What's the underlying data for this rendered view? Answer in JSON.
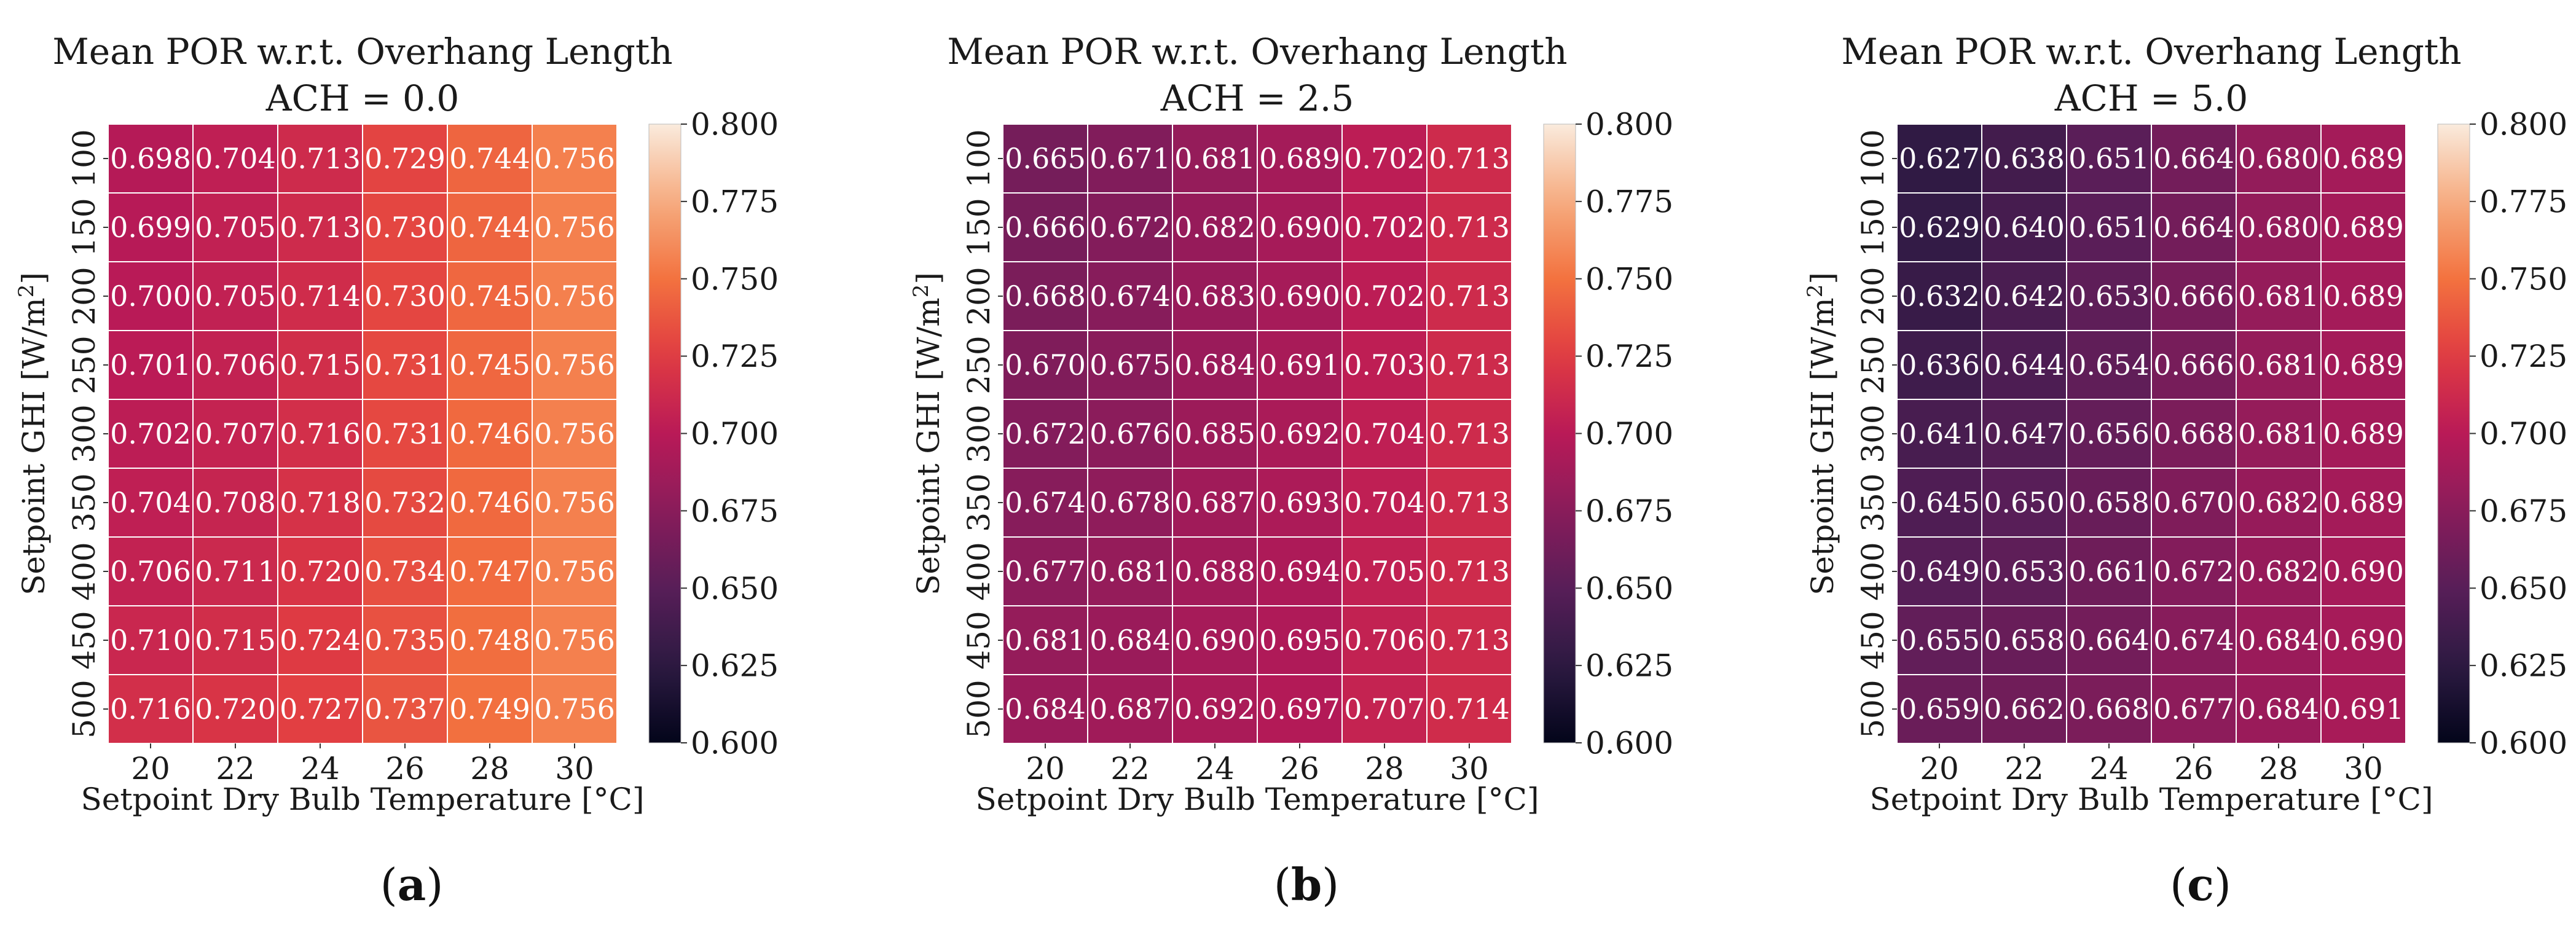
{
  "colors": {
    "cmap": [
      "#03051a",
      "#2c1a42",
      "#581e58",
      "#891c5b",
      "#b91a57",
      "#e03b42",
      "#f3723f",
      "#f6ab7f",
      "#faebdd"
    ],
    "cell_border": "#ffffff",
    "text_on_dark": "#ffffff"
  },
  "chart_data": [
    {
      "type": "heatmap",
      "title": "Mean POR w.r.t. Overhang Length",
      "subtitle": "ACH = 0.0",
      "xlabel": "Setpoint Dry Bulb Temperature [°C]",
      "ylabel_prefix": "Setpoint GHI [W/m",
      "ylabel_sup": "2",
      "ylabel_suffix": "]",
      "x": [
        "20",
        "22",
        "24",
        "26",
        "28",
        "30"
      ],
      "y": [
        "100",
        "150",
        "200",
        "250",
        "300",
        "350",
        "400",
        "450",
        "500"
      ],
      "values": [
        [
          0.698,
          0.704,
          0.713,
          0.729,
          0.744,
          0.756
        ],
        [
          0.699,
          0.705,
          0.713,
          0.73,
          0.744,
          0.756
        ],
        [
          0.7,
          0.705,
          0.714,
          0.73,
          0.745,
          0.756
        ],
        [
          0.701,
          0.706,
          0.715,
          0.731,
          0.745,
          0.756
        ],
        [
          0.702,
          0.707,
          0.716,
          0.731,
          0.746,
          0.756
        ],
        [
          0.704,
          0.708,
          0.718,
          0.732,
          0.746,
          0.756
        ],
        [
          0.706,
          0.711,
          0.72,
          0.734,
          0.747,
          0.756
        ],
        [
          0.71,
          0.715,
          0.724,
          0.735,
          0.748,
          0.756
        ],
        [
          0.716,
          0.72,
          0.727,
          0.737,
          0.749,
          0.756
        ]
      ],
      "value_labels": [
        [
          "0.698",
          "0.704",
          "0.713",
          "0.729",
          "0.744",
          "0.756"
        ],
        [
          "0.699",
          "0.705",
          "0.713",
          "0.730",
          "0.744",
          "0.756"
        ],
        [
          "0.700",
          "0.705",
          "0.714",
          "0.730",
          "0.745",
          "0.756"
        ],
        [
          "0.701",
          "0.706",
          "0.715",
          "0.731",
          "0.745",
          "0.756"
        ],
        [
          "0.702",
          "0.707",
          "0.716",
          "0.731",
          "0.746",
          "0.756"
        ],
        [
          "0.704",
          "0.708",
          "0.718",
          "0.732",
          "0.746",
          "0.756"
        ],
        [
          "0.706",
          "0.711",
          "0.720",
          "0.734",
          "0.747",
          "0.756"
        ],
        [
          "0.710",
          "0.715",
          "0.724",
          "0.735",
          "0.748",
          "0.756"
        ],
        [
          "0.716",
          "0.720",
          "0.727",
          "0.737",
          "0.749",
          "0.756"
        ]
      ],
      "colorbar": {
        "range": [
          0.6,
          0.8
        ],
        "ticks": [
          0.6,
          0.625,
          0.65,
          0.675,
          0.7,
          0.725,
          0.75,
          0.775,
          0.8
        ],
        "tick_labels": [
          "0.600",
          "0.625",
          "0.650",
          "0.675",
          "0.700",
          "0.725",
          "0.750",
          "0.775",
          "0.800"
        ]
      },
      "caption": "(a)"
    },
    {
      "type": "heatmap",
      "title": "Mean POR w.r.t. Overhang Length",
      "subtitle": "ACH = 2.5",
      "xlabel": "Setpoint Dry Bulb Temperature [°C]",
      "ylabel_prefix": "Setpoint GHI [W/m",
      "ylabel_sup": "2",
      "ylabel_suffix": "]",
      "x": [
        "20",
        "22",
        "24",
        "26",
        "28",
        "30"
      ],
      "y": [
        "100",
        "150",
        "200",
        "250",
        "300",
        "350",
        "400",
        "450",
        "500"
      ],
      "values": [
        [
          0.665,
          0.671,
          0.681,
          0.689,
          0.702,
          0.713
        ],
        [
          0.666,
          0.672,
          0.682,
          0.69,
          0.702,
          0.713
        ],
        [
          0.668,
          0.674,
          0.683,
          0.69,
          0.702,
          0.713
        ],
        [
          0.67,
          0.675,
          0.684,
          0.691,
          0.703,
          0.713
        ],
        [
          0.672,
          0.676,
          0.685,
          0.692,
          0.704,
          0.713
        ],
        [
          0.674,
          0.678,
          0.687,
          0.693,
          0.704,
          0.713
        ],
        [
          0.677,
          0.681,
          0.688,
          0.694,
          0.705,
          0.713
        ],
        [
          0.681,
          0.684,
          0.69,
          0.695,
          0.706,
          0.713
        ],
        [
          0.684,
          0.687,
          0.692,
          0.697,
          0.707,
          0.714
        ]
      ],
      "value_labels": [
        [
          "0.665",
          "0.671",
          "0.681",
          "0.689",
          "0.702",
          "0.713"
        ],
        [
          "0.666",
          "0.672",
          "0.682",
          "0.690",
          "0.702",
          "0.713"
        ],
        [
          "0.668",
          "0.674",
          "0.683",
          "0.690",
          "0.702",
          "0.713"
        ],
        [
          "0.670",
          "0.675",
          "0.684",
          "0.691",
          "0.703",
          "0.713"
        ],
        [
          "0.672",
          "0.676",
          "0.685",
          "0.692",
          "0.704",
          "0.713"
        ],
        [
          "0.674",
          "0.678",
          "0.687",
          "0.693",
          "0.704",
          "0.713"
        ],
        [
          "0.677",
          "0.681",
          "0.688",
          "0.694",
          "0.705",
          "0.713"
        ],
        [
          "0.681",
          "0.684",
          "0.690",
          "0.695",
          "0.706",
          "0.713"
        ],
        [
          "0.684",
          "0.687",
          "0.692",
          "0.697",
          "0.707",
          "0.714"
        ]
      ],
      "colorbar": {
        "range": [
          0.6,
          0.8
        ],
        "ticks": [
          0.6,
          0.625,
          0.65,
          0.675,
          0.7,
          0.725,
          0.75,
          0.775,
          0.8
        ],
        "tick_labels": [
          "0.600",
          "0.625",
          "0.650",
          "0.675",
          "0.700",
          "0.725",
          "0.750",
          "0.775",
          "0.800"
        ]
      },
      "caption": "(b)"
    },
    {
      "type": "heatmap",
      "title": "Mean POR w.r.t. Overhang Length",
      "subtitle": "ACH = 5.0",
      "xlabel": "Setpoint Dry Bulb Temperature [°C]",
      "ylabel_prefix": "Setpoint GHI [W/m",
      "ylabel_sup": "2",
      "ylabel_suffix": "]",
      "x": [
        "20",
        "22",
        "24",
        "26",
        "28",
        "30"
      ],
      "y": [
        "100",
        "150",
        "200",
        "250",
        "300",
        "350",
        "400",
        "450",
        "500"
      ],
      "values": [
        [
          0.627,
          0.638,
          0.651,
          0.664,
          0.68,
          0.689
        ],
        [
          0.629,
          0.64,
          0.651,
          0.664,
          0.68,
          0.689
        ],
        [
          0.632,
          0.642,
          0.653,
          0.666,
          0.681,
          0.689
        ],
        [
          0.636,
          0.644,
          0.654,
          0.666,
          0.681,
          0.689
        ],
        [
          0.641,
          0.647,
          0.656,
          0.668,
          0.681,
          0.689
        ],
        [
          0.645,
          0.65,
          0.658,
          0.67,
          0.682,
          0.689
        ],
        [
          0.649,
          0.653,
          0.661,
          0.672,
          0.682,
          0.69
        ],
        [
          0.655,
          0.658,
          0.664,
          0.674,
          0.684,
          0.69
        ],
        [
          0.659,
          0.662,
          0.668,
          0.677,
          0.684,
          0.691
        ]
      ],
      "value_labels": [
        [
          "0.627",
          "0.638",
          "0.651",
          "0.664",
          "0.680",
          "0.689"
        ],
        [
          "0.629",
          "0.640",
          "0.651",
          "0.664",
          "0.680",
          "0.689"
        ],
        [
          "0.632",
          "0.642",
          "0.653",
          "0.666",
          "0.681",
          "0.689"
        ],
        [
          "0.636",
          "0.644",
          "0.654",
          "0.666",
          "0.681",
          "0.689"
        ],
        [
          "0.641",
          "0.647",
          "0.656",
          "0.668",
          "0.681",
          "0.689"
        ],
        [
          "0.645",
          "0.650",
          "0.658",
          "0.670",
          "0.682",
          "0.689"
        ],
        [
          "0.649",
          "0.653",
          "0.661",
          "0.672",
          "0.682",
          "0.690"
        ],
        [
          "0.655",
          "0.658",
          "0.664",
          "0.674",
          "0.684",
          "0.690"
        ],
        [
          "0.659",
          "0.662",
          "0.668",
          "0.677",
          "0.684",
          "0.691"
        ]
      ],
      "colorbar": {
        "range": [
          0.6,
          0.8
        ],
        "ticks": [
          0.6,
          0.625,
          0.65,
          0.675,
          0.7,
          0.725,
          0.75,
          0.775,
          0.8
        ],
        "tick_labels": [
          "0.600",
          "0.625",
          "0.650",
          "0.675",
          "0.700",
          "0.725",
          "0.750",
          "0.775",
          "0.800"
        ]
      },
      "caption": "(c)"
    }
  ]
}
